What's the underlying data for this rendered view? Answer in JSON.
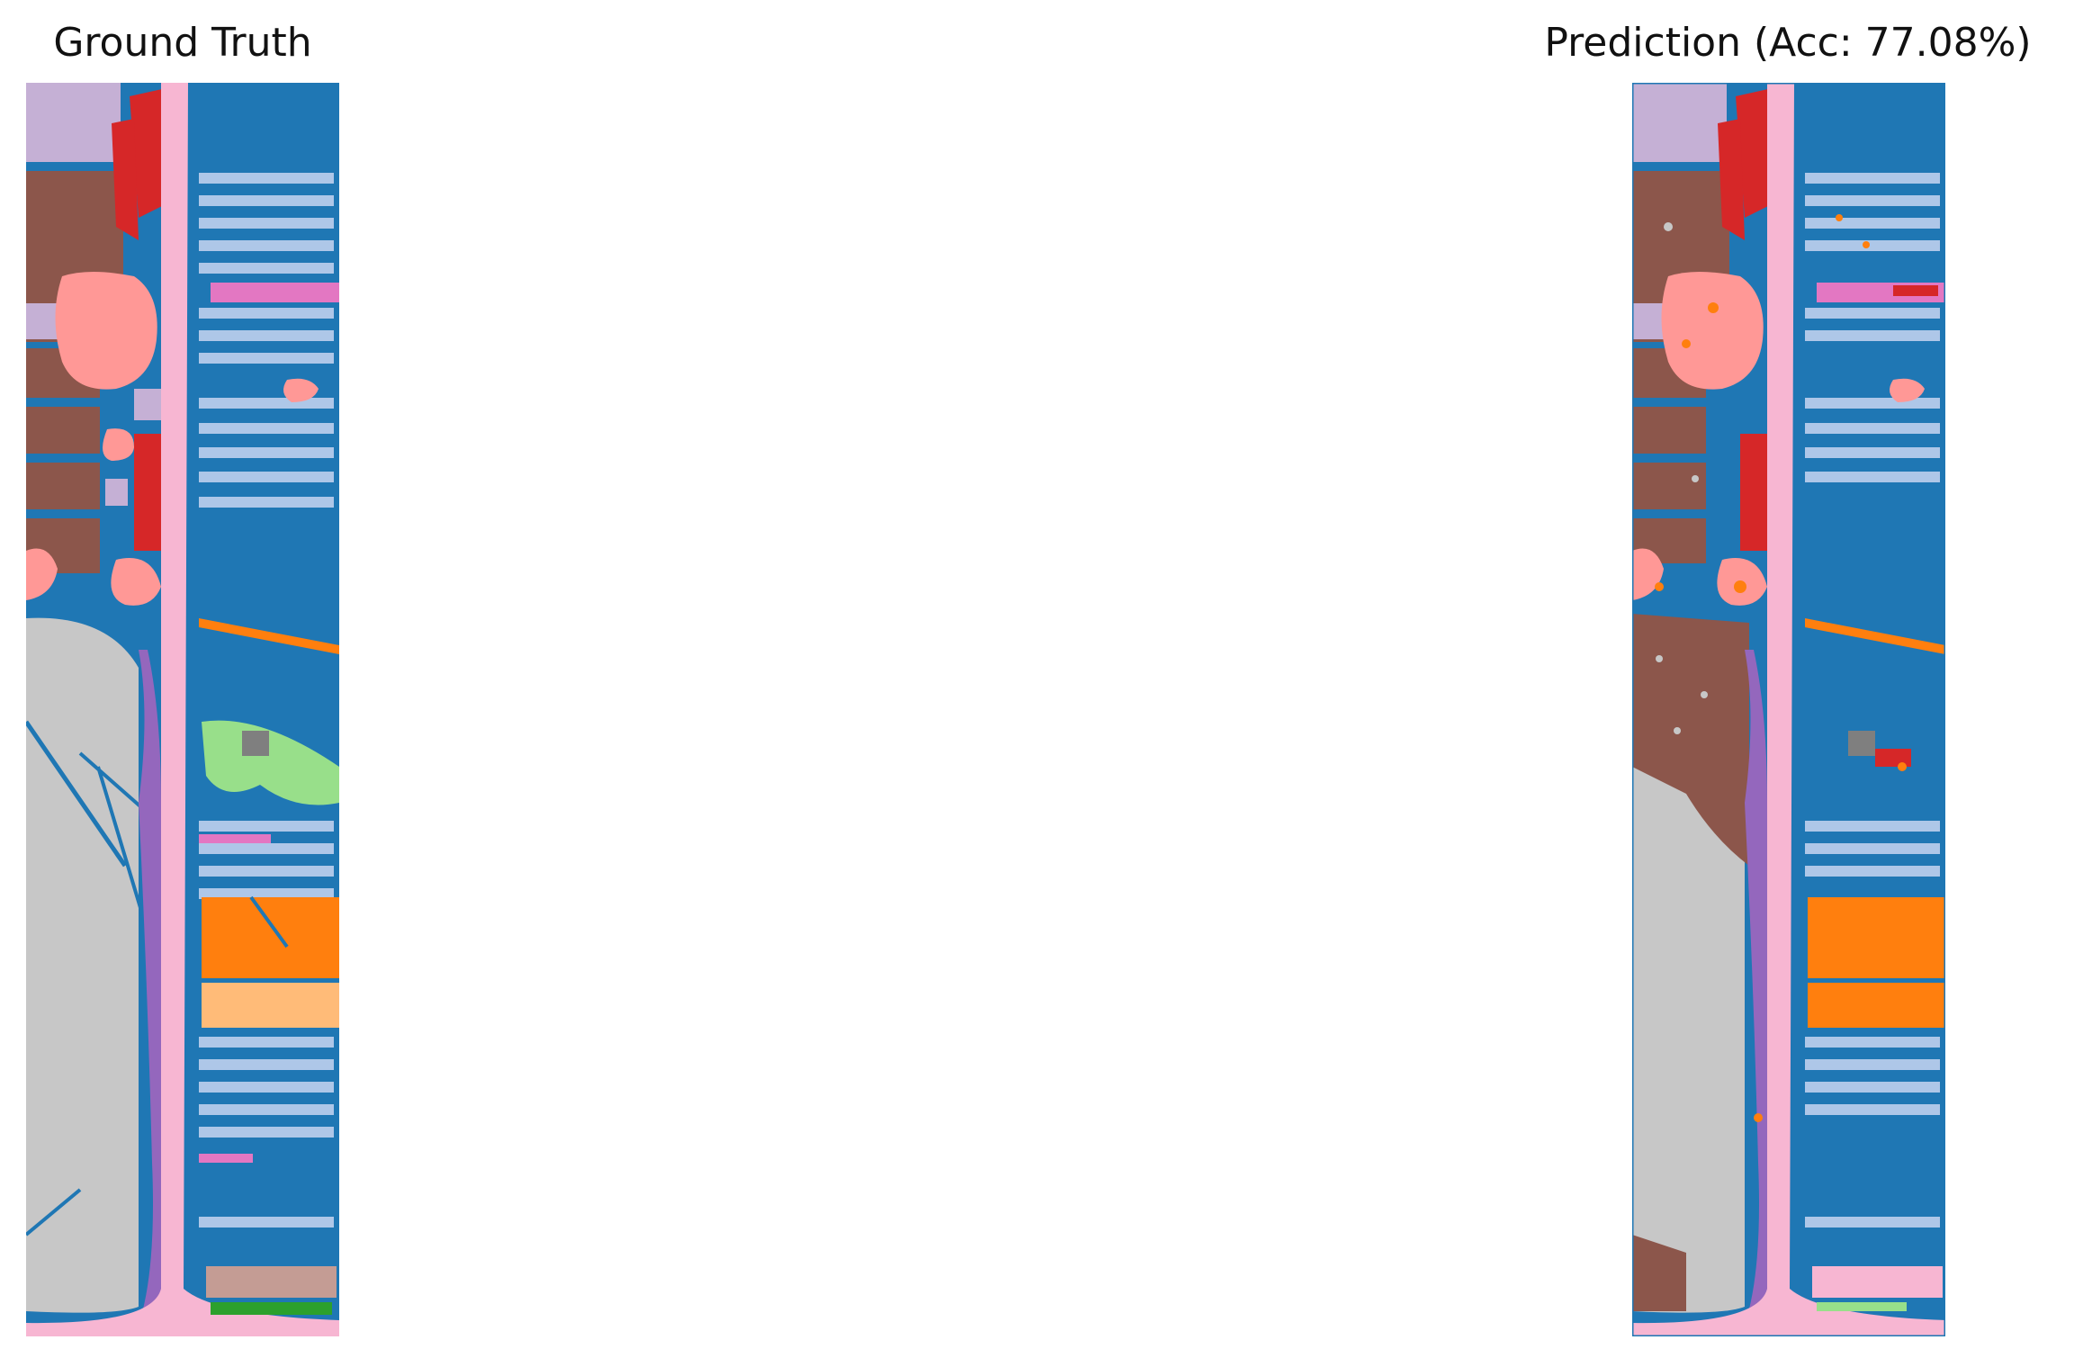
{
  "panels": {
    "left": {
      "title": "Ground Truth"
    },
    "right": {
      "title": "Prediction (Acc: 77.08%)"
    }
  },
  "class_colors": {
    "background": "#1f77b4",
    "light_blue": "#aec7e8",
    "orange": "#ff7f0e",
    "light_orange": "#ffbb78",
    "green": "#2ca02c",
    "light_green": "#98df8a",
    "red": "#d62728",
    "salmon": "#ff9896",
    "purple": "#9467bd",
    "lavender": "#c5b0d5",
    "brown": "#8c564b",
    "tan": "#c49c94",
    "pink": "#e377c2",
    "light_pink": "#f7b6d2",
    "gray": "#7f7f7f",
    "light_gray": "#c7c7c7"
  }
}
